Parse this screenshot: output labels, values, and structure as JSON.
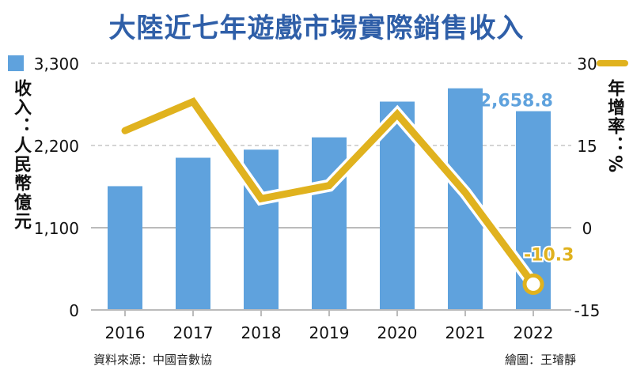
{
  "title": "大陸近七年遊戲市場實際銷售收入",
  "source": "資料來源：中國音數協",
  "credit": "繪圖：王璿靜",
  "chart_data": {
    "type": "bar+line",
    "title": "大陸近七年遊戲市場實際銷售收入",
    "categories": [
      "2016",
      "2017",
      "2018",
      "2019",
      "2020",
      "2021",
      "2022"
    ],
    "series": [
      {
        "name": "收入：人民幣億元",
        "type": "bar",
        "axis": "left",
        "color": "#5fa2dd",
        "values": [
          1655.7,
          2036.1,
          2144.4,
          2308.8,
          2786.9,
          2965.1,
          2658.8
        ]
      },
      {
        "name": "年增率：%",
        "type": "line",
        "axis": "right",
        "color": "#e0b21e",
        "values": [
          17.7,
          23.0,
          5.3,
          7.7,
          20.7,
          6.4,
          -10.3
        ]
      }
    ],
    "left_axis": {
      "label": "收入：人民幣億元",
      "ylim": [
        0,
        3300
      ],
      "ticks": [
        "0",
        "1,100",
        "2,200",
        "3,300"
      ]
    },
    "right_axis": {
      "label": "年增率：%",
      "ylim": [
        -15,
        30
      ],
      "ticks": [
        "-15",
        "0",
        "15",
        "30"
      ]
    },
    "data_labels": {
      "bar_2022": "2,658.8",
      "line_2022": "-10.3"
    },
    "grid": true,
    "legend": "top-left / top-right icons"
  }
}
